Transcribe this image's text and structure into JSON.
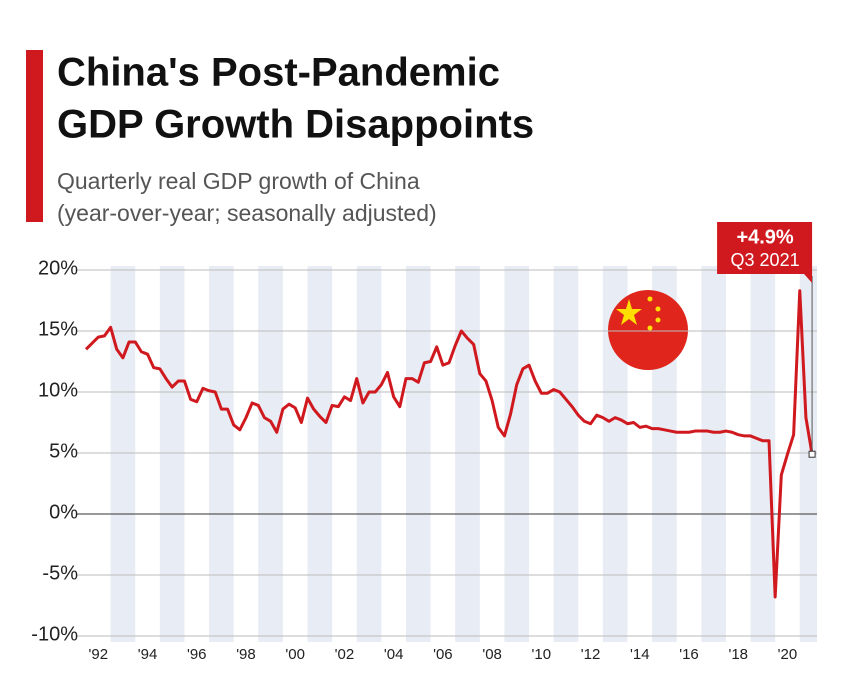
{
  "chart_data": {
    "type": "line",
    "title": [
      "China's Post-Pandemic",
      "GDP Growth Disappoints"
    ],
    "subtitle": [
      "Quarterly real GDP growth of China",
      "(year-over-year; seasonally adjusted)"
    ],
    "annotation": {
      "label": "+4.9%",
      "sublabel": "Q3 2021"
    },
    "x": [
      1992,
      1992.25,
      1992.5,
      1992.75,
      1993,
      1993.25,
      1993.5,
      1993.75,
      1994,
      1994.25,
      1994.5,
      1994.75,
      1995,
      1995.25,
      1995.5,
      1995.75,
      1996,
      1996.25,
      1996.5,
      1996.75,
      1997,
      1997.25,
      1997.5,
      1997.75,
      1998,
      1998.25,
      1998.5,
      1998.75,
      1999,
      1999.25,
      1999.5,
      1999.75,
      2000,
      2000.25,
      2000.5,
      2000.75,
      2001,
      2001.25,
      2001.5,
      2001.75,
      2002,
      2002.25,
      2002.5,
      2002.75,
      2003,
      2003.25,
      2003.5,
      2003.75,
      2004,
      2004.25,
      2004.5,
      2004.75,
      2005,
      2005.25,
      2005.5,
      2005.75,
      2006,
      2006.25,
      2006.5,
      2006.75,
      2007,
      2007.25,
      2007.5,
      2007.75,
      2008,
      2008.25,
      2008.5,
      2008.75,
      2009,
      2009.25,
      2009.5,
      2009.75,
      2010,
      2010.25,
      2010.5,
      2010.75,
      2011,
      2011.25,
      2011.5,
      2011.75,
      2012,
      2012.25,
      2012.5,
      2012.75,
      2013,
      2013.25,
      2013.5,
      2013.75,
      2014,
      2014.25,
      2014.5,
      2014.75,
      2015,
      2015.25,
      2015.5,
      2015.75,
      2016,
      2016.25,
      2016.5,
      2016.75,
      2017,
      2017.25,
      2017.5,
      2017.75,
      2018,
      2018.25,
      2018.5,
      2018.75,
      2019,
      2019.25,
      2019.5,
      2019.75,
      2020,
      2020.25,
      2020.5,
      2020.75,
      2021,
      2021.25,
      2021.5
    ],
    "series": [
      {
        "name": "GDP growth",
        "color": "#d0191e",
        "values": [
          13.5,
          14.0,
          14.5,
          14.6,
          15.3,
          13.5,
          12.8,
          14.1,
          14.1,
          13.3,
          13.1,
          12.0,
          11.9,
          11.1,
          10.4,
          10.9,
          10.9,
          9.4,
          9.2,
          10.3,
          10.1,
          10.0,
          8.6,
          8.6,
          7.3,
          6.9,
          7.9,
          9.1,
          8.9,
          7.9,
          7.6,
          6.7,
          8.6,
          9.0,
          8.7,
          7.5,
          9.5,
          8.6,
          8.0,
          7.5,
          8.9,
          8.8,
          9.6,
          9.3,
          11.1,
          9.1,
          10.0,
          10.0,
          10.6,
          11.6,
          9.6,
          8.8,
          11.1,
          11.1,
          10.8,
          12.4,
          12.5,
          13.7,
          12.2,
          12.4,
          13.8,
          15.0,
          14.4,
          13.9,
          11.5,
          10.9,
          9.3,
          7.1,
          6.4,
          8.2,
          10.6,
          11.9,
          12.2,
          10.9,
          9.9,
          9.9,
          10.2,
          10.0,
          9.4,
          8.8,
          8.1,
          7.6,
          7.4,
          8.1,
          7.9,
          7.6,
          7.9,
          7.7,
          7.4,
          7.5,
          7.1,
          7.2,
          7.0,
          7.0,
          6.9,
          6.8,
          6.7,
          6.7,
          6.7,
          6.8,
          6.8,
          6.8,
          6.7,
          6.7,
          6.8,
          6.7,
          6.5,
          6.4,
          6.4,
          6.2,
          6.0,
          6.0,
          -6.8,
          3.2,
          4.9,
          6.5,
          18.3,
          7.9,
          4.9
        ]
      }
    ],
    "xlim": [
      1992,
      2021.7
    ],
    "xticks": [
      {
        "value": 1992.5,
        "label": "'92"
      },
      {
        "value": 1994.5,
        "label": "'94"
      },
      {
        "value": 1996.5,
        "label": "'96"
      },
      {
        "value": 1998.5,
        "label": "'98"
      },
      {
        "value": 2000.5,
        "label": "'00"
      },
      {
        "value": 2002.5,
        "label": "'02"
      },
      {
        "value": 2004.5,
        "label": "'04"
      },
      {
        "value": 2006.5,
        "label": "'06"
      },
      {
        "value": 2008.5,
        "label": "'08"
      },
      {
        "value": 2010.5,
        "label": "'10"
      },
      {
        "value": 2012.5,
        "label": "'12"
      },
      {
        "value": 2014.5,
        "label": "'14"
      },
      {
        "value": 2016.5,
        "label": "'16"
      },
      {
        "value": 2018.5,
        "label": "'18"
      },
      {
        "value": 2020.5,
        "label": "'20"
      }
    ],
    "ylim": [
      -10,
      20
    ],
    "yticks": [
      {
        "value": -10,
        "label": "-10%"
      },
      {
        "value": -5,
        "label": "-5%"
      },
      {
        "value": 0,
        "label": "0%"
      },
      {
        "value": 5,
        "label": "5%"
      },
      {
        "value": 10,
        "label": "10%"
      },
      {
        "value": 15,
        "label": "15%"
      },
      {
        "value": 20,
        "label": "20%"
      }
    ],
    "grid": true
  }
}
